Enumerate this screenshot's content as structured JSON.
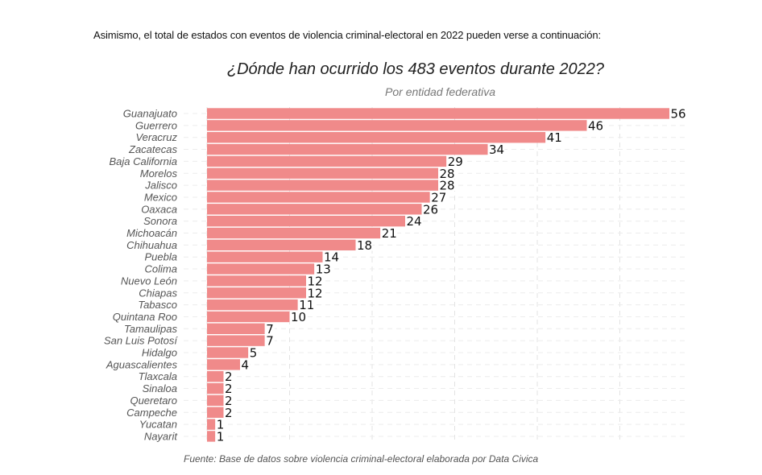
{
  "intro_text": "Asimismo, el total de estados con eventos de violencia criminal-electoral en 2022 pueden verse a continuación:",
  "chart_data": {
    "type": "bar",
    "orientation": "horizontal",
    "title": "¿Dónde han ocurrido los 483 eventos durante 2022?",
    "subtitle": "Por entidad federativa",
    "caption": "Fuente: Base de datos sobre violencia criminal-electoral elaborada por Data Civica",
    "xlabel": "",
    "ylabel": "",
    "xlim": [
      0,
      58
    ],
    "grid": true,
    "bar_color": "#F08A8A",
    "categories": [
      "Guanajuato",
      "Guerrero",
      "Veracruz",
      "Zacatecas",
      "Baja California",
      "Morelos",
      "Jalisco",
      "Mexico",
      "Oaxaca",
      "Sonora",
      "Michoacán",
      "Chihuahua",
      "Puebla",
      "Colima",
      "Nuevo León",
      "Chiapas",
      "Tabasco",
      "Quintana Roo",
      "Tamaulipas",
      "San Luis Potosí",
      "Hidalgo",
      "Aguascalientes",
      "Tlaxcala",
      "Sinaloa",
      "Queretaro",
      "Campeche",
      "Yucatan",
      "Nayarit"
    ],
    "values": [
      56,
      46,
      41,
      34,
      29,
      28,
      28,
      27,
      26,
      24,
      21,
      18,
      14,
      13,
      12,
      12,
      11,
      10,
      7,
      7,
      5,
      4,
      2,
      2,
      2,
      2,
      1,
      1
    ]
  }
}
